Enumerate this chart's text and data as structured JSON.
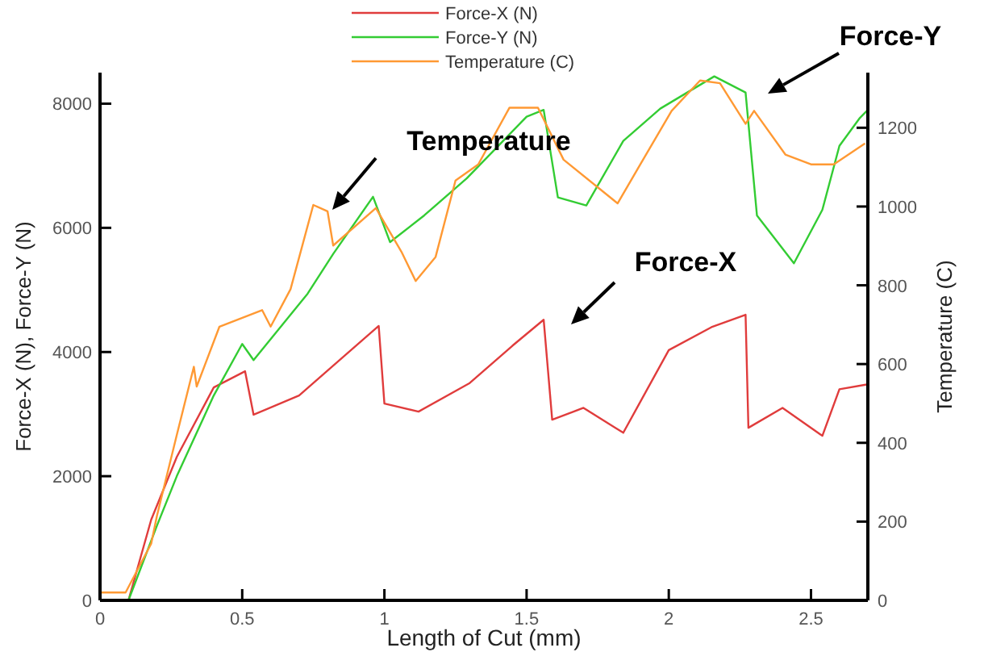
{
  "chart_data": {
    "type": "line",
    "xlabel": "Length of Cut (mm)",
    "ylabel": "Force-X (N), Force-Y (N)",
    "y2label": "Temperature (C)",
    "xlim": [
      0,
      2.7
    ],
    "xticks": [
      0,
      0.5,
      1,
      1.5,
      2,
      2.5
    ],
    "ylim": [
      0,
      8500
    ],
    "yticks": [
      0,
      2000,
      4000,
      6000,
      8000
    ],
    "y2lim": [
      0,
      1340
    ],
    "y2ticks": [
      0,
      200,
      400,
      600,
      800,
      1000,
      1200
    ],
    "grid": false,
    "legend": "top",
    "marker": "none",
    "line_style": "solid",
    "series": [
      {
        "name": "Force-X (N)",
        "color": "#e03c3c",
        "x": [
          0,
          0.1,
          0.18,
          0.27,
          0.4,
          0.51,
          0.54,
          0.7,
          0.85,
          0.98,
          1.0,
          1.12,
          1.3,
          1.45,
          1.56,
          1.59,
          1.7,
          1.84,
          2.0,
          2.15,
          2.27,
          2.28,
          2.4,
          2.54,
          2.6,
          2.7
        ],
        "values": [
          0,
          0,
          1300,
          2310,
          3430,
          3690,
          2990,
          3300,
          3900,
          4420,
          3170,
          3040,
          3500,
          4100,
          4520,
          2910,
          3100,
          2700,
          4030,
          4400,
          4600,
          2780,
          3100,
          2650,
          3400,
          3480
        ]
      },
      {
        "name": "Force-Y (N)",
        "color": "#33cc33",
        "x": [
          0,
          0.1,
          0.2,
          0.27,
          0.4,
          0.5,
          0.54,
          0.73,
          0.82,
          0.96,
          1.02,
          1.14,
          1.29,
          1.5,
          1.56,
          1.61,
          1.71,
          1.84,
          1.97,
          2.16,
          2.27,
          2.31,
          2.44,
          2.54,
          2.6,
          2.67,
          2.7
        ],
        "values": [
          0,
          0,
          1200,
          2000,
          3300,
          4130,
          3870,
          4940,
          5580,
          6500,
          5770,
          6200,
          6800,
          7790,
          7900,
          6490,
          6360,
          7400,
          7920,
          8440,
          8180,
          6200,
          5430,
          6290,
          7320,
          7760,
          7900
        ]
      },
      {
        "name": "Temperature (C)",
        "color": "#ff9933",
        "axis": "y2",
        "x": [
          0,
          0.09,
          0.18,
          0.2,
          0.27,
          0.33,
          0.34,
          0.42,
          0.57,
          0.6,
          0.67,
          0.75,
          0.8,
          0.82,
          0.97,
          1.06,
          1.11,
          1.18,
          1.25,
          1.33,
          1.44,
          1.54,
          1.63,
          1.82,
          1.9,
          2.01,
          2.11,
          2.18,
          2.27,
          2.3,
          2.41,
          2.5,
          2.58,
          2.69
        ],
        "values": [
          20,
          20,
          144,
          214,
          420,
          593,
          543,
          695,
          737,
          695,
          790,
          1004,
          988,
          901,
          996,
          885,
          811,
          872,
          1066,
          1107,
          1251,
          1251,
          1119,
          1008,
          1107,
          1243,
          1320,
          1313,
          1210,
          1243,
          1132,
          1107,
          1107,
          1160
        ]
      }
    ],
    "annotations": [
      "Temperature",
      "Force-Y",
      "Force-X"
    ]
  }
}
